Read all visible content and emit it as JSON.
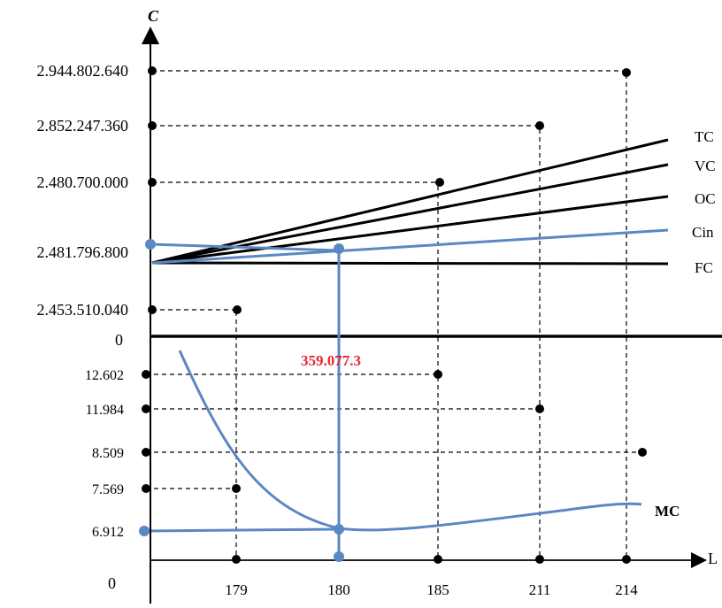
{
  "chart_data": {
    "type": "line",
    "axes": {
      "y_title": "C",
      "x_title": "L",
      "upper_zero": "0",
      "lower_zero": "0"
    },
    "upper_panel": {
      "y_tick_labels": [
        "2.944.802.640",
        "2.852.247.360",
        "2.480.700.000",
        "2.481.796.800",
        "2.453.510.040"
      ],
      "series": [
        {
          "name": "TC",
          "color": "#000000"
        },
        {
          "name": "VC",
          "color": "#000000"
        },
        {
          "name": "OC",
          "color": "#000000"
        },
        {
          "name": "Cin",
          "color": "#5b87c2"
        },
        {
          "name": "FC",
          "color": "#000000"
        }
      ]
    },
    "lower_panel": {
      "y_tick_labels": [
        "12.602",
        "11.984",
        "8.509",
        "7.569",
        "6.912"
      ],
      "series": [
        {
          "name": "MC",
          "color": "#5b87c2"
        }
      ]
    },
    "x_tick_labels": [
      "179",
      "180",
      "185",
      "211",
      "214"
    ],
    "annotations": [
      {
        "text": "359.077.3",
        "color": "#e3262b"
      }
    ]
  }
}
